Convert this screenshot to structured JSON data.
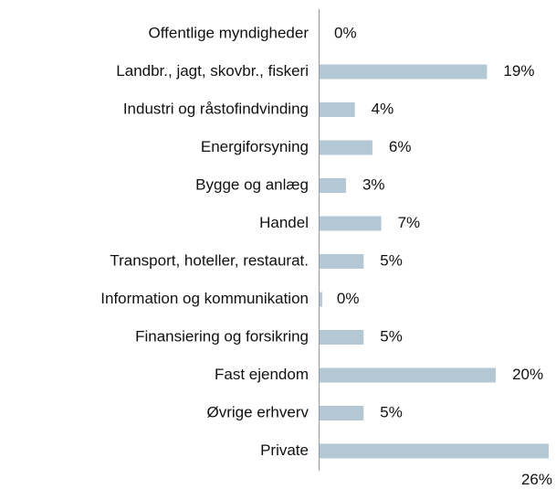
{
  "chart_data": {
    "type": "bar",
    "orientation": "horizontal",
    "categories": [
      "Offentlige myndigheder",
      "Landbr., jagt, skovbr., fiskeri",
      "Industri og råstofindvinding",
      "Energiforsyning",
      "Bygge og anlæg",
      "Handel",
      "Transport, hoteller, restaurat.",
      "Information og kommunikation",
      "Finansiering og forsikring",
      "Fast ejendom",
      "Øvrige erhverv",
      "Private"
    ],
    "values": [
      0,
      19,
      4,
      6,
      3,
      7,
      5,
      0.3,
      5,
      20,
      5,
      26
    ],
    "value_labels": [
      "0%",
      "19%",
      "4%",
      "6%",
      "3%",
      "7%",
      "5%",
      "0%",
      "5%",
      "20%",
      "5%",
      "26%"
    ],
    "color": "#b3c7d4"
  }
}
